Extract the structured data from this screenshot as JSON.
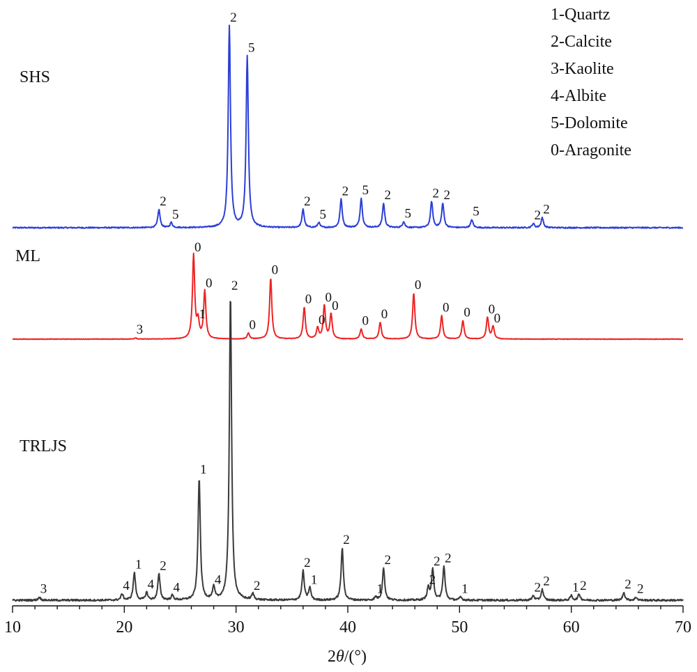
{
  "chart_data": {
    "type": "line",
    "xlabel_prefix": "2",
    "xlabel_theta": "θ",
    "xlabel_suffix": "/(°)",
    "xlim": [
      10,
      70
    ],
    "x_ticks": [
      10,
      20,
      30,
      40,
      50,
      60,
      70
    ],
    "grid": false,
    "legend_position": "top-right",
    "legend": [
      "1-Quartz",
      "2-Calcite",
      "3-Kaolite",
      "4-Albite",
      "5-Dolomite",
      "0-Aragonite"
    ],
    "series": [
      {
        "name": "SHS",
        "color": "#2b3fd6",
        "peaks": [
          {
            "x": 23.1,
            "h": 0.09,
            "label": "2"
          },
          {
            "x": 24.2,
            "h": 0.025,
            "label": "5"
          },
          {
            "x": 29.4,
            "h": 1.0,
            "label": "2"
          },
          {
            "x": 31.0,
            "h": 0.85,
            "label": "5"
          },
          {
            "x": 36.0,
            "h": 0.09,
            "label": "2"
          },
          {
            "x": 37.4,
            "h": 0.025,
            "label": "5"
          },
          {
            "x": 39.4,
            "h": 0.14,
            "label": "2"
          },
          {
            "x": 41.2,
            "h": 0.145,
            "label": "5"
          },
          {
            "x": 43.2,
            "h": 0.12,
            "label": "2"
          },
          {
            "x": 45.0,
            "h": 0.03,
            "label": "5"
          },
          {
            "x": 47.5,
            "h": 0.13,
            "label": "2"
          },
          {
            "x": 48.5,
            "h": 0.12,
            "label": "2"
          },
          {
            "x": 51.1,
            "h": 0.04,
            "label": "5"
          },
          {
            "x": 56.6,
            "h": 0.02,
            "label": "2"
          },
          {
            "x": 57.4,
            "h": 0.05,
            "label": "2"
          }
        ]
      },
      {
        "name": "ML",
        "color": "#ee2323",
        "peaks": [
          {
            "x": 21.0,
            "h": 0.015,
            "label": "3"
          },
          {
            "x": 26.2,
            "h": 1.0,
            "label": "0"
          },
          {
            "x": 26.6,
            "h": 0.2,
            "label": "1"
          },
          {
            "x": 27.2,
            "h": 0.57,
            "label": "0"
          },
          {
            "x": 31.1,
            "h": 0.07,
            "label": "0"
          },
          {
            "x": 33.1,
            "h": 0.73,
            "label": "0"
          },
          {
            "x": 36.1,
            "h": 0.38,
            "label": "0"
          },
          {
            "x": 37.3,
            "h": 0.13,
            "label": "0"
          },
          {
            "x": 37.9,
            "h": 0.4,
            "label": "0"
          },
          {
            "x": 38.5,
            "h": 0.3,
            "label": "0"
          },
          {
            "x": 41.2,
            "h": 0.12,
            "label": "0"
          },
          {
            "x": 42.9,
            "h": 0.2,
            "label": "0"
          },
          {
            "x": 45.9,
            "h": 0.55,
            "label": "0"
          },
          {
            "x": 48.4,
            "h": 0.28,
            "label": "0"
          },
          {
            "x": 50.3,
            "h": 0.22,
            "label": "0"
          },
          {
            "x": 52.5,
            "h": 0.26,
            "label": "0"
          },
          {
            "x": 53.0,
            "h": 0.15,
            "label": "0"
          }
        ]
      },
      {
        "name": "TRLJS",
        "color": "#3a3a3a",
        "peaks": [
          {
            "x": 12.4,
            "h": 0.01,
            "label": "3"
          },
          {
            "x": 19.8,
            "h": 0.02,
            "label": "4"
          },
          {
            "x": 20.9,
            "h": 0.09,
            "label": "1"
          },
          {
            "x": 22.0,
            "h": 0.025,
            "label": "4"
          },
          {
            "x": 23.1,
            "h": 0.085,
            "label": "2"
          },
          {
            "x": 24.3,
            "h": 0.015,
            "label": "4"
          },
          {
            "x": 26.7,
            "h": 0.4,
            "label": "1"
          },
          {
            "x": 28.0,
            "h": 0.04,
            "label": "4"
          },
          {
            "x": 29.5,
            "h": 1.0,
            "label": "2"
          },
          {
            "x": 31.5,
            "h": 0.02,
            "label": "2"
          },
          {
            "x": 36.0,
            "h": 0.095,
            "label": "2"
          },
          {
            "x": 36.6,
            "h": 0.04,
            "label": "1"
          },
          {
            "x": 39.5,
            "h": 0.17,
            "label": "2"
          },
          {
            "x": 42.5,
            "h": 0.01,
            "label": "1"
          },
          {
            "x": 43.2,
            "h": 0.105,
            "label": "2"
          },
          {
            "x": 47.2,
            "h": 0.04,
            "label": "2"
          },
          {
            "x": 47.6,
            "h": 0.1,
            "label": "2"
          },
          {
            "x": 48.6,
            "h": 0.11,
            "label": "2"
          },
          {
            "x": 50.1,
            "h": 0.01,
            "label": "1"
          },
          {
            "x": 56.6,
            "h": 0.015,
            "label": "2"
          },
          {
            "x": 57.4,
            "h": 0.035,
            "label": "2"
          },
          {
            "x": 60.0,
            "h": 0.015,
            "label": "1"
          },
          {
            "x": 60.7,
            "h": 0.02,
            "label": "2"
          },
          {
            "x": 64.7,
            "h": 0.025,
            "label": "2"
          },
          {
            "x": 65.8,
            "h": 0.01,
            "label": "2"
          }
        ]
      }
    ]
  }
}
